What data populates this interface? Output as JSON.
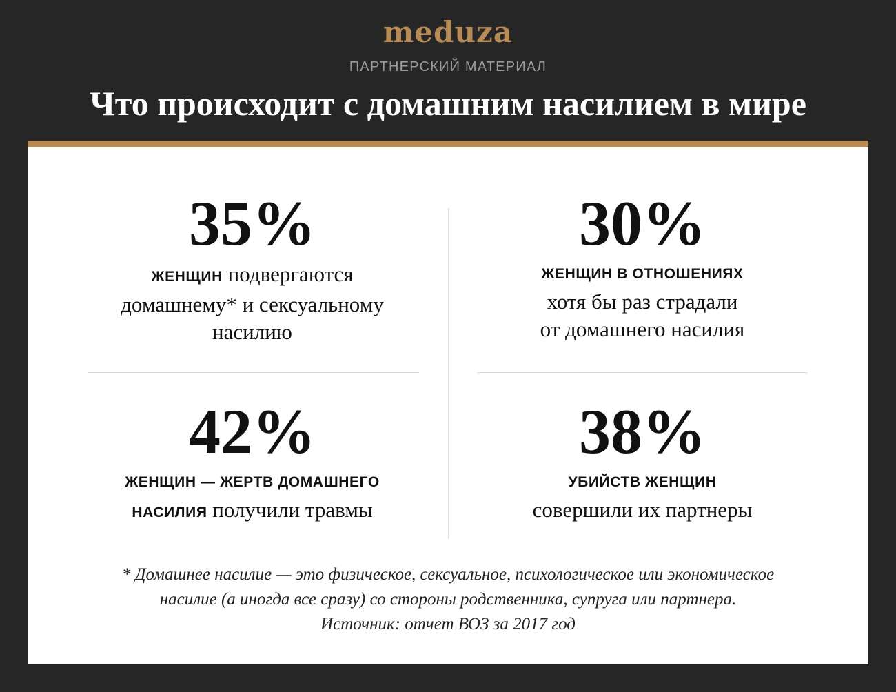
{
  "header": {
    "logo": "meduza",
    "kicker": "ПАРТНЕРСКИЙ МАТЕРИАЛ",
    "title": "Что происходит с домашним насилием в мире"
  },
  "stats": [
    {
      "value": "35%",
      "caps": "ЖЕНЩИН",
      "lines": [
        "подвергаются",
        "домашнему* и сексуальному",
        "насилию"
      ]
    },
    {
      "value": "30%",
      "caps": "ЖЕНЩИН В ОТНОШЕНИЯХ",
      "lines": [
        "хотя бы раз страдали",
        "от домашнего насилия"
      ]
    },
    {
      "value": "42%",
      "caps_line1": "ЖЕНЩИН — ЖЕРТВ ДОМАШНЕГО",
      "caps_line2": "НАСИЛИЯ",
      "rest": "получили травмы"
    },
    {
      "value": "38%",
      "caps": "УБИЙСТВ ЖЕНЩИН",
      "lines": [
        "совершили их партнеры"
      ]
    }
  ],
  "footnote": {
    "line1": "* Домашнее насилие — это физическое, сексуальное, психологическое или экономическое",
    "line2": "насилие (а иногда все сразу) со стороны родственника, супруга или партнера.",
    "source": "Источник: отчет ВОЗ за 2017 год"
  },
  "colors": {
    "background": "#262626",
    "accent": "#b88a56",
    "card": "#ffffff"
  }
}
